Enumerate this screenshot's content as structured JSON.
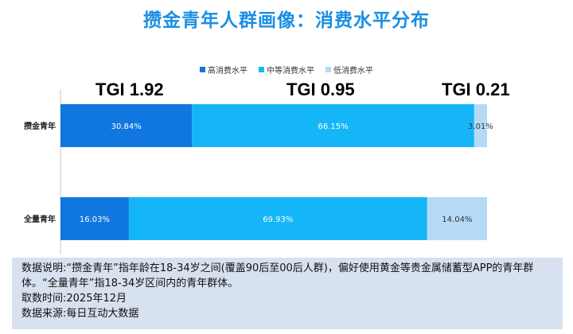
{
  "title": "攒金青年人群画像：消费水平分布",
  "tgi": [
    "TGI 1.92",
    "TGI 0.95",
    "TGI 0.21"
  ],
  "note": {
    "line1": "数据说明:“攒金青年”指年龄在18-34岁之间(覆盖90后至00后人群)，偏好使用黄金等贵金属储蓄型APP的青年群体。“全量青年”指18-34岁区间内的青年群体。",
    "line2": "取数时间:2025年12月",
    "line3": "数据来源:每日互动大数据"
  },
  "colors": {
    "title": "#1a8fe3",
    "high": "#1177e0",
    "mid": "#15b6f7",
    "low": "#b5daf6",
    "note_bg": "#d7e1ef"
  },
  "chart_data": {
    "type": "bar",
    "orientation": "horizontal",
    "stacked": true,
    "categories": [
      "攒金青年",
      "全量青年"
    ],
    "series": [
      {
        "name": "高消费水平",
        "values": [
          30.84,
          16.03
        ],
        "labels": [
          "30.84%",
          "16.03%"
        ],
        "color": "#1177e0"
      },
      {
        "name": "中等消费水平",
        "values": [
          66.15,
          69.93
        ],
        "labels": [
          "66.15%",
          "69.93%"
        ],
        "color": "#15b6f7"
      },
      {
        "name": "低消费水平",
        "values": [
          3.01,
          14.04
        ],
        "labels": [
          "3.01%",
          "14.04%"
        ],
        "color": "#b5daf6"
      }
    ],
    "xlim": [
      0,
      100
    ],
    "legend_position": "top-center",
    "grid": false
  }
}
